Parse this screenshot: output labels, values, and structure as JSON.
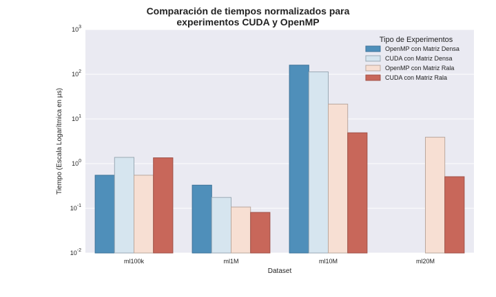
{
  "chart_data": {
    "type": "bar",
    "title_lines": [
      "Comparación de tiempos normalizados para",
      "experimentos CUDA y OpenMP"
    ],
    "xlabel": "Dataset",
    "ylabel": "Tiempo (Escala Logarítmica en µs)",
    "yscale": "log",
    "ylim": [
      0.01,
      1000
    ],
    "yticks": [
      {
        "value": 0.01,
        "base": "10",
        "exp": "-2"
      },
      {
        "value": 0.1,
        "base": "10",
        "exp": "-1"
      },
      {
        "value": 1,
        "base": "10",
        "exp": "0"
      },
      {
        "value": 10,
        "base": "10",
        "exp": "1"
      },
      {
        "value": 100,
        "base": "10",
        "exp": "2"
      },
      {
        "value": 1000,
        "base": "10",
        "exp": "3"
      }
    ],
    "categories": [
      "ml100k",
      "ml1M",
      "ml10M",
      "ml20M"
    ],
    "legend": {
      "title": "Tipo de Experimentos",
      "position": "top-right"
    },
    "grid": true,
    "series": [
      {
        "name": "OpenMP con Matriz Densa",
        "color": "#4f8fba",
        "edge": "#3f7399",
        "values": [
          0.55,
          0.33,
          160,
          null
        ]
      },
      {
        "name": "CUDA con Matriz Densa",
        "color": "#d6e5ef",
        "edge": "#9aa9b4",
        "values": [
          1.38,
          0.175,
          113,
          null
        ]
      },
      {
        "name": "OpenMP con Matriz Rala",
        "color": "#f7dfd3",
        "edge": "#b9a79d",
        "values": [
          0.55,
          0.107,
          21.5,
          3.9
        ]
      },
      {
        "name": "CUDA con Matriz Rala",
        "color": "#c8675a",
        "edge": "#a15248",
        "values": [
          1.35,
          0.081,
          4.9,
          0.51
        ]
      }
    ]
  }
}
